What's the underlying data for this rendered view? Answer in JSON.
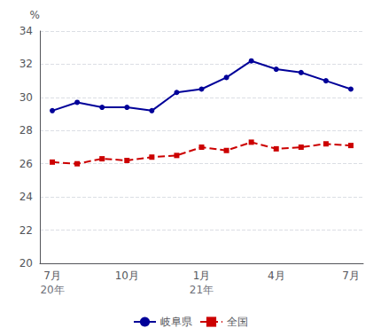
{
  "chart_data": {
    "type": "line",
    "y_label": "%",
    "categories": [
      "7月",
      null,
      null,
      "10月",
      null,
      null,
      "1月",
      null,
      null,
      "4月",
      null,
      null,
      "7月"
    ],
    "series": [
      {
        "name": "岐阜県",
        "color": "#000099",
        "marker": "circle",
        "line_style": "solid",
        "values": [
          29.2,
          29.7,
          29.4,
          29.4,
          29.2,
          30.3,
          30.5,
          31.2,
          32.2,
          31.7,
          31.5,
          31.0,
          30.5
        ]
      },
      {
        "name": "全国",
        "color": "#cc0000",
        "marker": "square",
        "line_style": "dashed",
        "values": [
          26.1,
          26.0,
          26.3,
          26.2,
          26.4,
          26.5,
          27.0,
          26.8,
          27.3,
          26.9,
          27.0,
          27.2,
          27.1
        ]
      }
    ],
    "annotations": [
      {
        "text": "20年",
        "x": 0
      },
      {
        "text": "21年",
        "x": 6
      }
    ],
    "ylim": [
      20,
      34
    ],
    "yticks": [
      20,
      22,
      24,
      26,
      28,
      30,
      32,
      34
    ],
    "grid": true,
    "legend": "bottom"
  }
}
